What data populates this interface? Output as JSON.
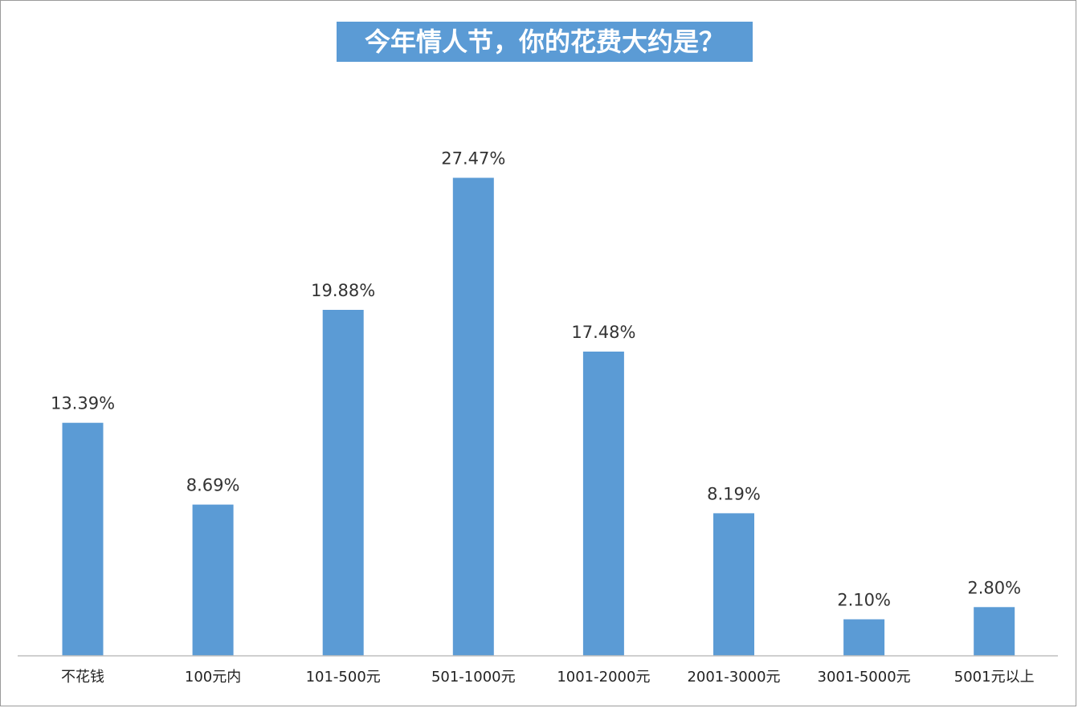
{
  "chart_data": {
    "type": "bar",
    "title": "今年情人节，你的花费大约是？",
    "categories": [
      "不花钱",
      "100元内",
      "101-500元",
      "501-1000元",
      "1001-2000元",
      "2001-3000元",
      "3001-5000元",
      "5001元以上"
    ],
    "values": [
      13.39,
      8.69,
      19.88,
      27.47,
      17.48,
      8.19,
      2.1,
      2.8
    ],
    "data_labels": [
      "13.39%",
      "8.69%",
      "19.88%",
      "27.47%",
      "17.48%",
      "8.19%",
      "2.10%",
      "2.80%"
    ],
    "xlabel": "",
    "ylabel": "",
    "ylim": [
      0,
      30
    ],
    "grid": false,
    "legend": "none",
    "bar_color": "#5b9bd5",
    "axis_color": "#bfbfbf"
  }
}
